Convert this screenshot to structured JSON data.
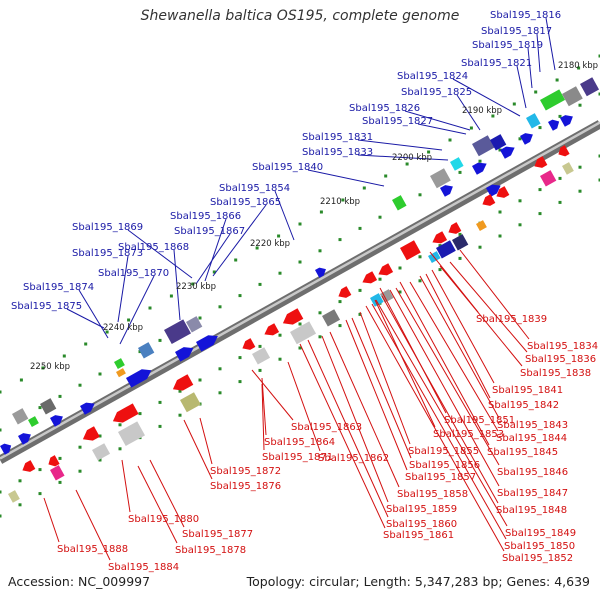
{
  "title": "Shewanella baltica OS195, complete genome",
  "footer": {
    "accession": "Accession: NC_009997",
    "topology": "Topology: circular; Length: 5,347,283 bp; Genes: 4,639"
  },
  "colors": {
    "forward_label": "#1a1aa6",
    "reverse_label": "#d31010",
    "backbone": "#8a8a8a",
    "tick": "#2a8a2a"
  },
  "scale_labels": [
    "2180 kbp",
    "2190 kbp",
    "2200 kbp",
    "2210 kbp",
    "2220 kbp",
    "2230 kbp",
    "2240 kbp",
    "2250 kbp"
  ],
  "forward_genes": [
    "Sbal195_1816",
    "Sbal195_1817",
    "Sbal195_1819",
    "Sbal195_1821",
    "Sbal195_1824",
    "Sbal195_1825",
    "Sbal195_1826",
    "Sbal195_1827",
    "Sbal195_1831",
    "Sbal195_1833",
    "Sbal195_1840",
    "Sbal195_1854",
    "Sbal195_1865",
    "Sbal195_1866",
    "Sbal195_1867",
    "Sbal195_1869",
    "Sbal195_1868",
    "Sbal195_1873",
    "Sbal195_1870",
    "Sbal195_1874",
    "Sbal195_1875"
  ],
  "reverse_genes": [
    "Sbal195_1839",
    "Sbal195_1834",
    "Sbal195_1836",
    "Sbal195_1838",
    "Sbal195_1841",
    "Sbal195_1842",
    "Sbal195_1863",
    "Sbal195_1851",
    "Sbal195_1843",
    "Sbal195_1853",
    "Sbal195_1844",
    "Sbal195_1864",
    "Sbal195_1871",
    "Sbal195_1862",
    "Sbal195_1855",
    "Sbal195_1845",
    "Sbal195_1856",
    "Sbal195_1846",
    "Sbal195_1872",
    "Sbal195_1857",
    "Sbal195_1876",
    "Sbal195_1858",
    "Sbal195_1847",
    "Sbal195_1848",
    "Sbal195_1859",
    "Sbal195_1880",
    "Sbal195_1860",
    "Sbal195_1849",
    "Sbal195_1877",
    "Sbal195_1861",
    "Sbal195_1850",
    "Sbal195_1878",
    "Sbal195_1852",
    "Sbal195_1888",
    "Sbal195_1884"
  ]
}
